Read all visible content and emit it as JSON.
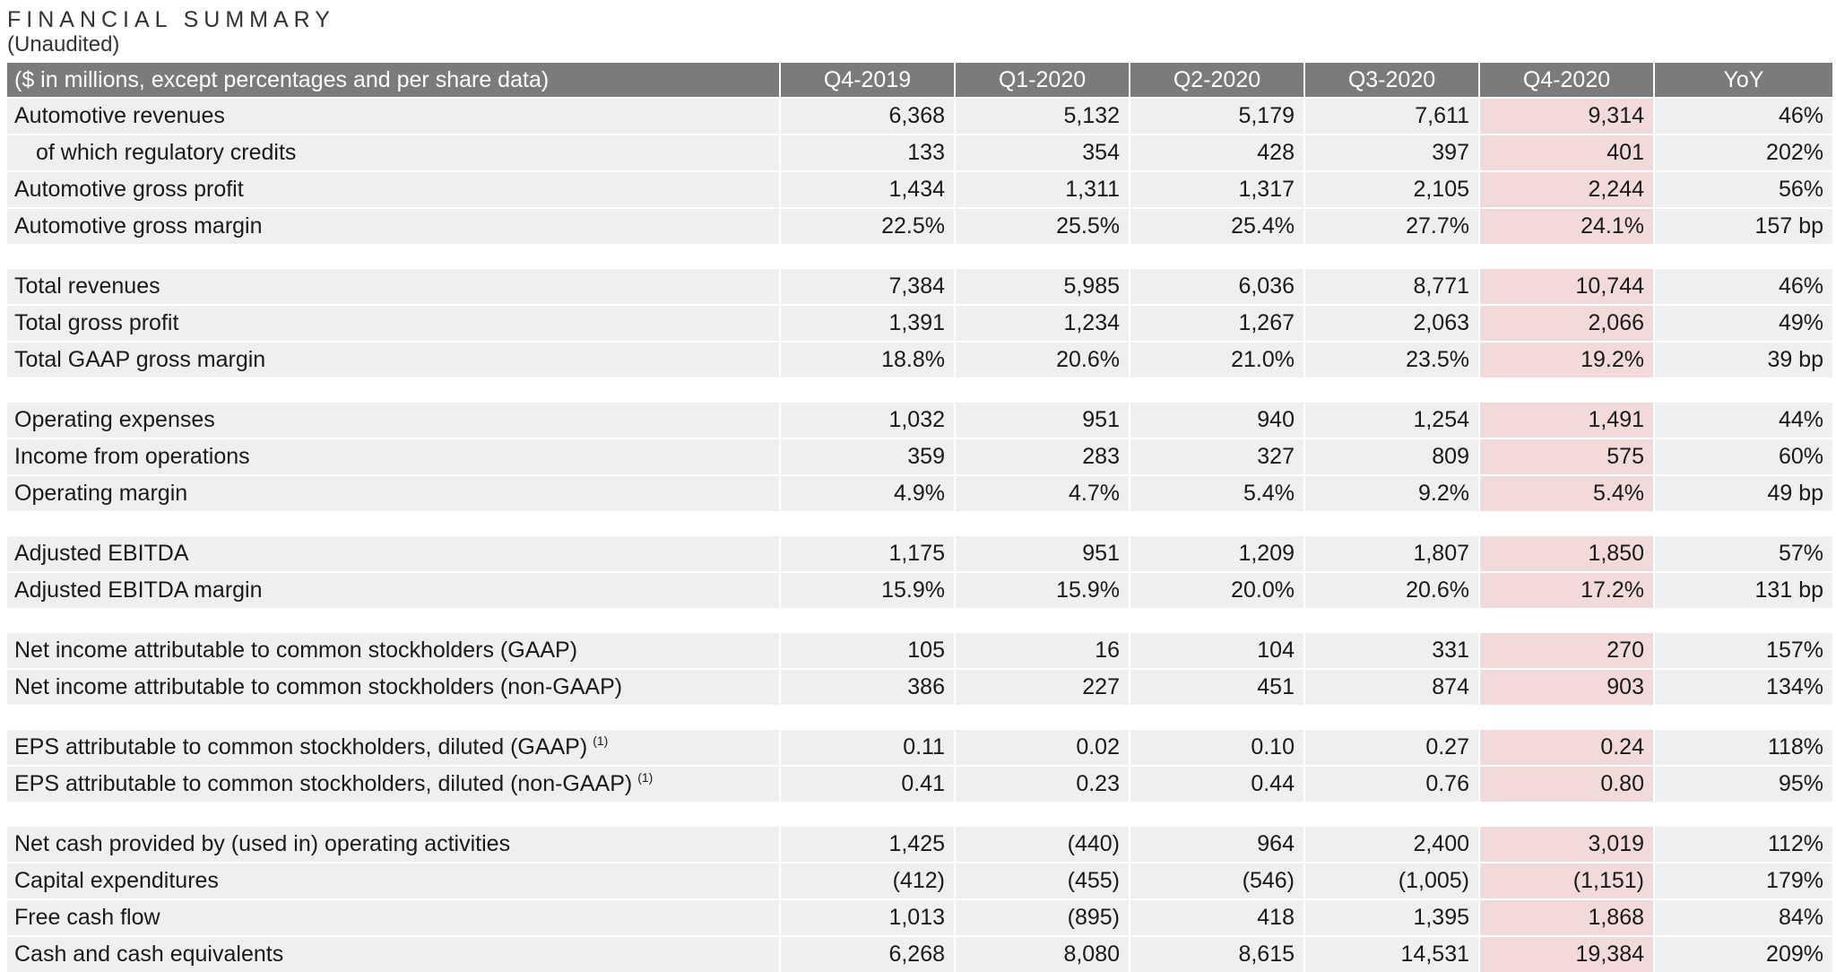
{
  "title": "FINANCIAL SUMMARY",
  "subtitle": "(Unaudited)",
  "header": [
    "($ in millions, except percentages and per share data)",
    "Q4-2019",
    "Q1-2020",
    "Q2-2020",
    "Q3-2020",
    "Q4-2020",
    "YoY"
  ],
  "highlight_color": "#f3dada",
  "groups": [
    {
      "rows": [
        {
          "label": "Automotive revenues",
          "values": [
            "6,368",
            "5,132",
            "5,179",
            "7,611",
            "9,314",
            "46%"
          ]
        },
        {
          "label": "of which regulatory credits",
          "values": [
            "133",
            "354",
            "428",
            "397",
            "401",
            "202%"
          ]
        },
        {
          "label": "Automotive gross profit",
          "values": [
            "1,434",
            "1,311",
            "1,317",
            "2,105",
            "2,244",
            "56%"
          ]
        },
        {
          "label": "Automotive gross margin",
          "values": [
            "22.5%",
            "25.5%",
            "25.4%",
            "27.7%",
            "24.1%",
            "157 bp"
          ]
        }
      ]
    },
    {
      "rows": [
        {
          "label": "Total revenues",
          "values": [
            "7,384",
            "5,985",
            "6,036",
            "8,771",
            "10,744",
            "46%"
          ]
        },
        {
          "label": "Total gross profit",
          "values": [
            "1,391",
            "1,234",
            "1,267",
            "2,063",
            "2,066",
            "49%"
          ]
        },
        {
          "label": "Total GAAP gross margin",
          "values": [
            "18.8%",
            "20.6%",
            "21.0%",
            "23.5%",
            "19.2%",
            "39 bp"
          ]
        }
      ]
    },
    {
      "rows": [
        {
          "label": "Operating expenses",
          "values": [
            "1,032",
            "951",
            "940",
            "1,254",
            "1,491",
            "44%"
          ]
        },
        {
          "label": "Income from operations",
          "values": [
            "359",
            "283",
            "327",
            "809",
            "575",
            "60%"
          ]
        },
        {
          "label": "Operating margin",
          "values": [
            "4.9%",
            "4.7%",
            "5.4%",
            "9.2%",
            "5.4%",
            "49 bp"
          ]
        }
      ]
    },
    {
      "rows": [
        {
          "label": "Adjusted EBITDA",
          "values": [
            "1,175",
            "951",
            "1,209",
            "1,807",
            "1,850",
            "57%"
          ]
        },
        {
          "label": "Adjusted EBITDA margin",
          "values": [
            "15.9%",
            "15.9%",
            "20.0%",
            "20.6%",
            "17.2%",
            "131 bp"
          ]
        }
      ]
    },
    {
      "rows": [
        {
          "label": "Net income attributable to common stockholders (GAAP)",
          "values": [
            "105",
            "16",
            "104",
            "331",
            "270",
            "157%"
          ]
        },
        {
          "label": "Net income attributable to common stockholders (non-GAAP)",
          "values": [
            "386",
            "227",
            "451",
            "874",
            "903",
            "134%"
          ]
        }
      ]
    },
    {
      "rows": [
        {
          "label": "EPS attributable to common stockholders, diluted (GAAP)",
          "footnote": "(1)",
          "values": [
            "0.11",
            "0.02",
            "0.10",
            "0.27",
            "0.24",
            "118%"
          ]
        },
        {
          "label": "EPS attributable to common stockholders, diluted (non-GAAP)",
          "footnote": "(1)",
          "values": [
            "0.41",
            "0.23",
            "0.44",
            "0.76",
            "0.80",
            "95%"
          ]
        }
      ]
    },
    {
      "rows": [
        {
          "label": "Net cash provided by (used in) operating activities",
          "values": [
            "1,425",
            "(440)",
            "964",
            "2,400",
            "3,019",
            "112%"
          ]
        },
        {
          "label": "Capital expenditures",
          "values": [
            "(412)",
            "(455)",
            "(546)",
            "(1,005)",
            "(1,151)",
            "179%"
          ]
        },
        {
          "label": "Free cash flow",
          "values": [
            "1,013",
            "(895)",
            "418",
            "1,395",
            "1,868",
            "84%"
          ]
        },
        {
          "label": "Cash and cash equivalents",
          "values": [
            "6,268",
            "8,080",
            "8,615",
            "14,531",
            "19,384",
            "209%"
          ]
        }
      ]
    }
  ]
}
